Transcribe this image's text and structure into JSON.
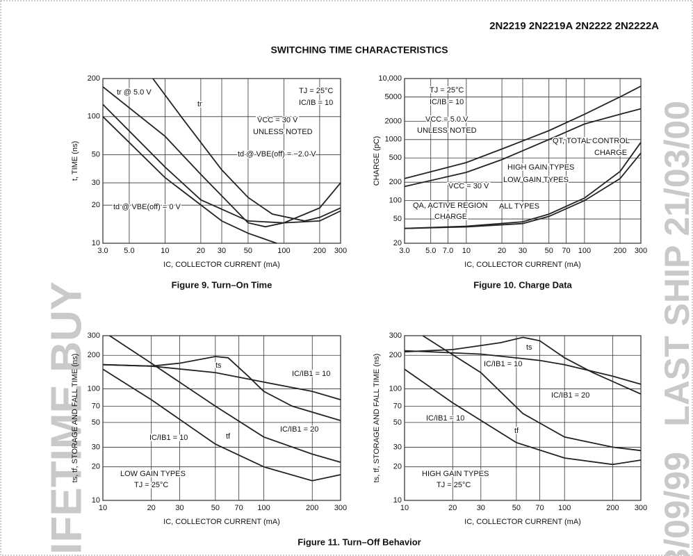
{
  "header": {
    "part_numbers": "2N2219 2N2219A 2N2222 2N2222A",
    "section_title": "SWITCHING TIME CHARACTERISTICS"
  },
  "watermarks": [
    "LIFETIME BUY",
    "LAST SHIP 21/03/00",
    "3/09/99"
  ],
  "captions": [
    "Figure 9. Turn–On Time",
    "Figure 10. Charge Data",
    "Figure 11. Turn–Off Behavior"
  ],
  "chart_data": [
    {
      "type": "line",
      "xscale": "log",
      "yscale": "log",
      "grid": true,
      "color": "#222",
      "x_label": "IC, COLLECTOR CURRENT (mA)",
      "y_label": "t, TIME (ns)",
      "xlim": [
        3,
        300
      ],
      "ylim": [
        10,
        200
      ],
      "xticks": [
        {
          "value": 3,
          "label": "3.0"
        },
        {
          "value": 5,
          "label": "5.0"
        },
        10,
        20,
        30,
        50,
        100,
        200,
        300
      ],
      "yticks": [
        10,
        20,
        30,
        50,
        100,
        200
      ],
      "annotations": [
        "TJ = 25°C",
        "IC/IB = 10",
        "VCC = 30 V",
        "UNLESS NOTED",
        "tr",
        "tr @ 5.0 V",
        "td @ VBE(off) = −2.0 V",
        "td @ VBE(off) = 0 V"
      ],
      "series": [
        {
          "x": [
            7.9,
            14,
            30,
            50,
            80,
            150,
            200,
            300
          ],
          "values": [
            200,
            97,
            38,
            23,
            17,
            15,
            16,
            19
          ]
        },
        {
          "x": [
            3,
            10,
            20,
            50,
            70,
            100,
            200,
            300
          ],
          "values": [
            172,
            70,
            35,
            14.5,
            13.5,
            14.5,
            19,
            30
          ]
        },
        {
          "x": [
            3,
            10,
            20,
            50,
            100,
            200,
            300
          ],
          "values": [
            125,
            40,
            22,
            15,
            14.5,
            15,
            18
          ]
        },
        {
          "x": [
            3,
            10,
            30,
            50,
            87
          ],
          "values": [
            100,
            33,
            15,
            12,
            10
          ]
        }
      ]
    },
    {
      "type": "line",
      "xscale": "log",
      "yscale": "log",
      "grid": true,
      "color": "#222",
      "x_label": "IC, COLLECTOR CURRENT (mA)",
      "y_label": "CHARGE (pC)",
      "xlim": [
        3,
        300
      ],
      "ylim": [
        20,
        10000
      ],
      "xticks": [
        {
          "value": 3,
          "label": "3.0"
        },
        {
          "value": 5,
          "label": "5.0"
        },
        {
          "value": 7,
          "label": "7.0"
        },
        10,
        20,
        30,
        50,
        70,
        100,
        200,
        300
      ],
      "yticks": [
        20,
        50,
        100,
        200,
        500,
        1000,
        2000,
        5000,
        {
          "value": 10000,
          "label": "10,000"
        }
      ],
      "annotations": [
        "TJ = 25°C",
        "IC/IB = 10",
        "VCC = 5.0 V",
        "UNLESS NOTED",
        "QT, TOTAL CONTROL",
        "CHARGE",
        "HIGH GAIN TYPES",
        "LOW GAIN TYPES",
        "VCC = 30 V",
        "QA, ACTIVE REGION",
        "CHARGE",
        "ALL TYPES"
      ],
      "series": [
        {
          "x": [
            3,
            10,
            20,
            50,
            100,
            200,
            300
          ],
          "values": [
            230,
            420,
            700,
            1400,
            2600,
            5000,
            7500
          ]
        },
        {
          "x": [
            3,
            10,
            20,
            50,
            100,
            200,
            300
          ],
          "values": [
            170,
            290,
            470,
            1000,
            1800,
            2600,
            3200
          ]
        },
        {
          "x": [
            3,
            10,
            30,
            50,
            100,
            200,
            300
          ],
          "values": [
            35,
            38,
            45,
            60,
            110,
            300,
            900
          ]
        },
        {
          "x": [
            3,
            10,
            30,
            50,
            100,
            200,
            300
          ],
          "values": [
            35,
            37,
            42,
            55,
            100,
            230,
            600
          ]
        }
      ]
    },
    {
      "type": "line",
      "xscale": "log",
      "yscale": "log",
      "grid": true,
      "color": "#222",
      "x_label": "IC, COLLECTOR CURRENT (mA)",
      "y_label": "ts, tf, STORAGE AND FALL TIME (ns)",
      "xlim": [
        10,
        300
      ],
      "ylim": [
        10,
        300
      ],
      "xticks": [
        10,
        20,
        30,
        50,
        70,
        100,
        200,
        300
      ],
      "yticks": [
        10,
        20,
        30,
        50,
        70,
        100,
        200,
        300
      ],
      "annotations": [
        "ts",
        "IC/IB1 = 10",
        "IC/IB1 = 20",
        "IC/IB1 = 10",
        "tf",
        "LOW GAIN TYPES",
        "TJ = 25°C"
      ],
      "series": [
        {
          "x": [
            10,
            20,
            50,
            100,
            200,
            300
          ],
          "values": [
            165,
            160,
            140,
            115,
            95,
            80
          ]
        },
        {
          "x": [
            10,
            20,
            30,
            50,
            60,
            80,
            100,
            150,
            300
          ],
          "values": [
            165,
            160,
            170,
            195,
            190,
            130,
            95,
            70,
            52
          ]
        },
        {
          "x": [
            11,
            20,
            50,
            100,
            200,
            300
          ],
          "values": [
            300,
            170,
            70,
            37,
            26,
            22
          ]
        },
        {
          "x": [
            10,
            20,
            50,
            100,
            200,
            300
          ],
          "values": [
            150,
            80,
            32,
            20,
            15,
            17
          ]
        }
      ]
    },
    {
      "type": "line",
      "xscale": "log",
      "yscale": "log",
      "grid": true,
      "color": "#222",
      "x_label": "IC, COLLECTOR CURRENT (mA)",
      "y_label": "ts, tf, STORAGE AND FALL TIME (ns)",
      "xlim": [
        10,
        300
      ],
      "ylim": [
        10,
        300
      ],
      "xticks": [
        10,
        20,
        30,
        50,
        70,
        100,
        200,
        300
      ],
      "yticks": [
        10,
        20,
        30,
        50,
        70,
        100,
        200,
        300
      ],
      "annotations": [
        "ts",
        "IC/IB1 = 10",
        "IC/IB1 = 20",
        "IC/IB1 = 10",
        "tf",
        "HIGH GAIN TYPES",
        "TJ = 25°C"
      ],
      "series": [
        {
          "x": [
            10,
            20,
            40,
            55,
            70,
            100,
            150,
            300
          ],
          "values": [
            215,
            225,
            260,
            290,
            270,
            190,
            140,
            90
          ]
        },
        {
          "x": [
            10,
            30,
            70,
            100,
            200,
            300
          ],
          "values": [
            220,
            205,
            180,
            165,
            130,
            110
          ]
        },
        {
          "x": [
            13,
            30,
            55,
            100,
            200,
            300
          ],
          "values": [
            300,
            140,
            60,
            37,
            30,
            28
          ]
        },
        {
          "x": [
            10,
            20,
            50,
            100,
            200,
            300
          ],
          "values": [
            150,
            75,
            33,
            24,
            21,
            23
          ]
        }
      ]
    }
  ]
}
